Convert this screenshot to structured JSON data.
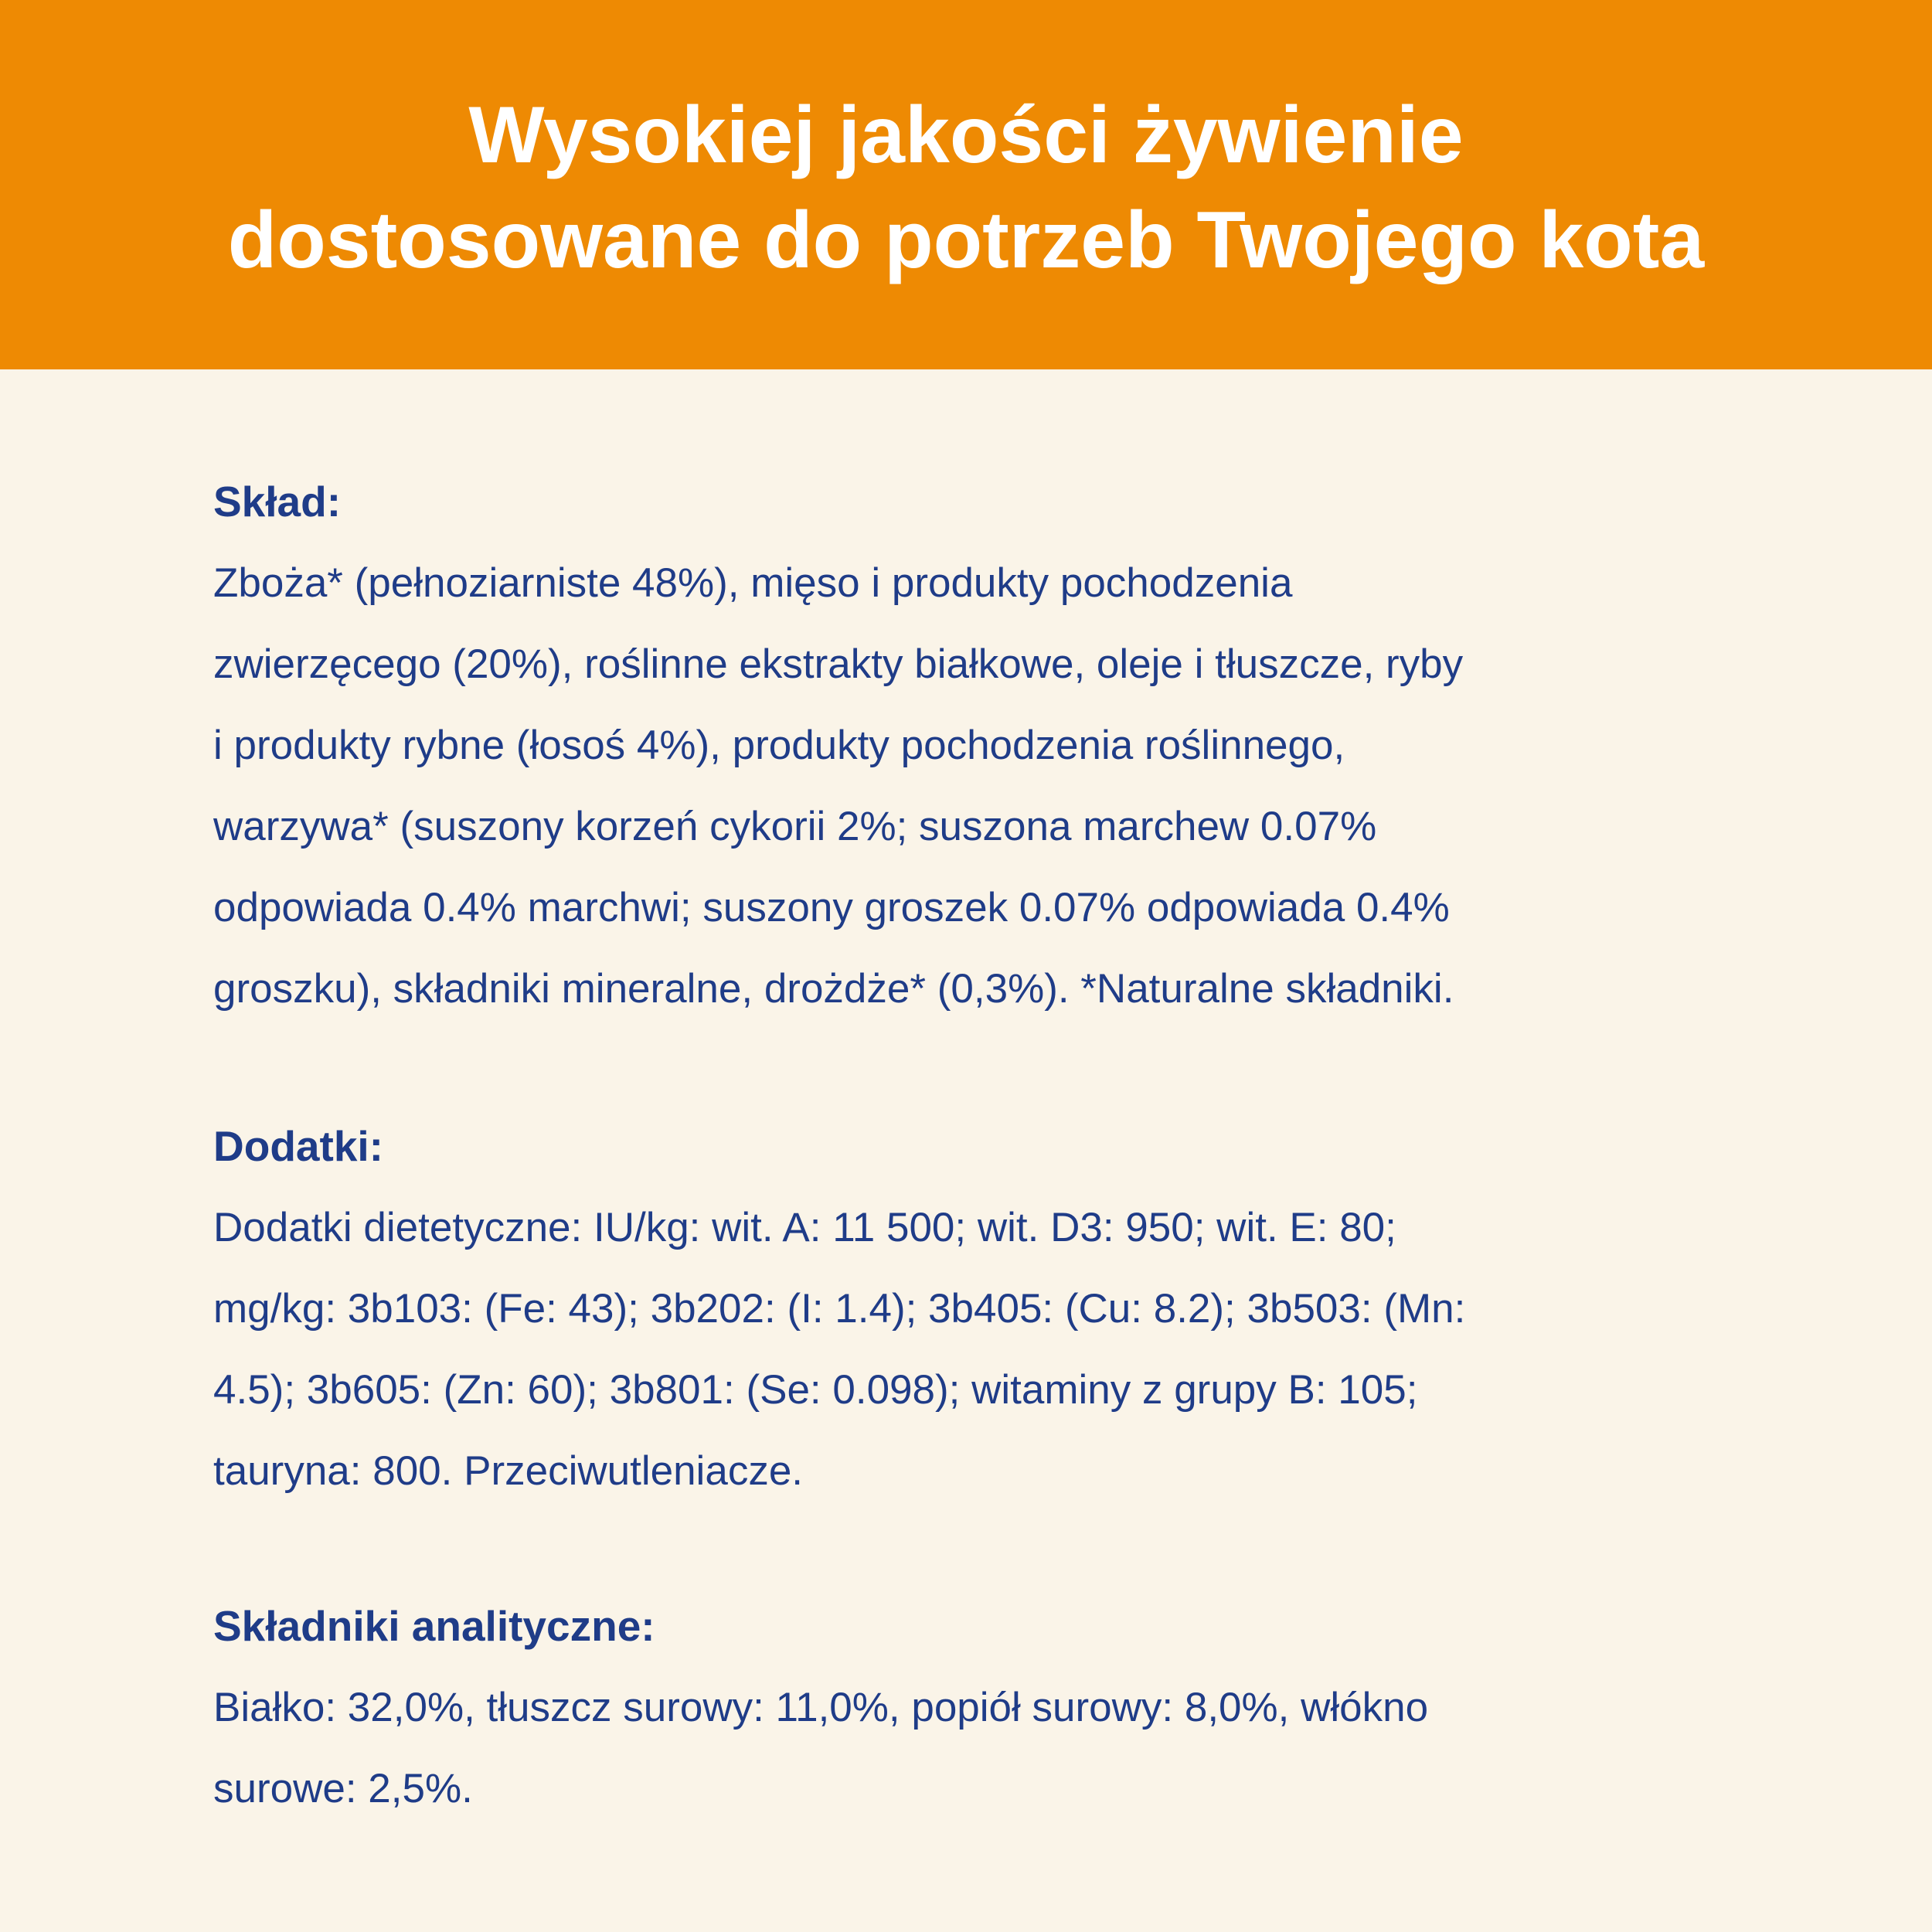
{
  "header": {
    "title_lines": [
      "Wysokiej jakości żywienie",
      "dostosowane do potrzeb Twojego kota"
    ]
  },
  "sections": [
    {
      "heading": "Skład:",
      "lines": [
        "Zboża* (pełnoziarniste 48%), mięso i produkty pochodzenia",
        "zwierzęcego (20%), roślinne ekstrakty białkowe, oleje i tłuszcze, ryby",
        "i produkty rybne (łosoś 4%), produkty pochodzenia roślinnego,",
        "warzywa* (suszony korzeń cykorii 2%; suszona marchew 0.07%",
        "odpowiada 0.4% marchwi; suszony groszek 0.07% odpowiada 0.4%",
        "groszku), składniki mineralne, drożdże* (0,3%). *Naturalne składniki."
      ]
    },
    {
      "heading": "Dodatki:",
      "lines": [
        "Dodatki dietetyczne: IU/kg: wit. A: 11 500; wit. D3: 950; wit. E: 80;",
        "mg/kg: 3b103: (Fe: 43); 3b202: (I: 1.4); 3b405: (Cu: 8.2); 3b503: (Mn:",
        "4.5); 3b605: (Zn: 60); 3b801: (Se: 0.098); witaminy z grupy B: 105;",
        "tauryna: 800. Przeciwutleniacze."
      ]
    },
    {
      "heading": "Składniki analityczne:",
      "lines": [
        "Białko: 32,0%, tłuszcz surowy: 11,0%, popiół surowy: 8,0%, włókno",
        "surowe: 2,5%."
      ]
    }
  ],
  "colors": {
    "header_bg": "#EE8A03",
    "page_bg": "#FAF4E8",
    "text": "#1F3C88"
  }
}
